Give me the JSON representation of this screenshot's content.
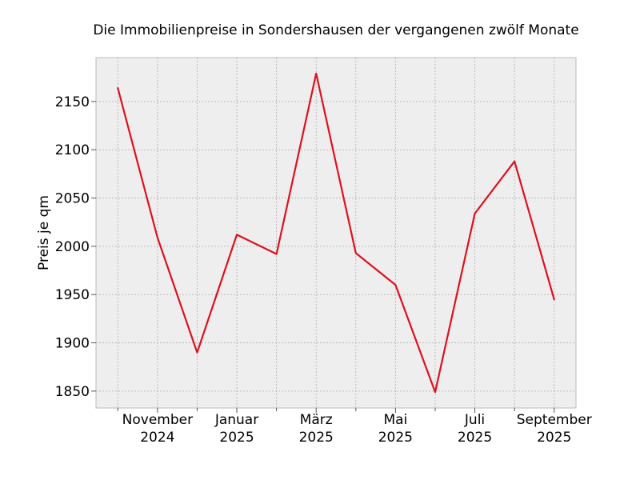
{
  "chart_data": {
    "type": "line",
    "title": "Die Immobilienpreise in Sondershausen der vergangenen zwölf Monate",
    "xlabel": "",
    "ylabel": "Preis je qm",
    "x": [
      "2024-10",
      "2024-11",
      "2024-12",
      "2025-01",
      "2025-02",
      "2025-03",
      "2025-04",
      "2025-05",
      "2025-06",
      "2025-07",
      "2025-08",
      "2025-09"
    ],
    "series": [
      {
        "values": [
          2164,
          2009,
          1890,
          2012,
          1992,
          2179,
          1993,
          1960,
          1849,
          2034,
          2088,
          1945
        ],
        "color": "#e0101e"
      }
    ],
    "xticks": [
      {
        "x": "2024-11",
        "line1": "November",
        "line2": "2024"
      },
      {
        "x": "2025-01",
        "line1": "Januar",
        "line2": "2025"
      },
      {
        "x": "2025-03",
        "line1": "März",
        "line2": "2025"
      },
      {
        "x": "2025-05",
        "line1": "Mai",
        "line2": "2025"
      },
      {
        "x": "2025-07",
        "line1": "Juli",
        "line2": "2025"
      },
      {
        "x": "2025-09",
        "line1": "September",
        "line2": "2025"
      }
    ],
    "yticks": [
      1850,
      1900,
      1950,
      2000,
      2050,
      2100,
      2150
    ],
    "ylim": [
      1832.5,
      2195.5
    ],
    "grid": true,
    "style": {
      "plot_background": "#eeeeee",
      "grid_color": "#b0b0b0",
      "frame_color": "#bcbcbc",
      "tick_color": "#555555"
    }
  }
}
